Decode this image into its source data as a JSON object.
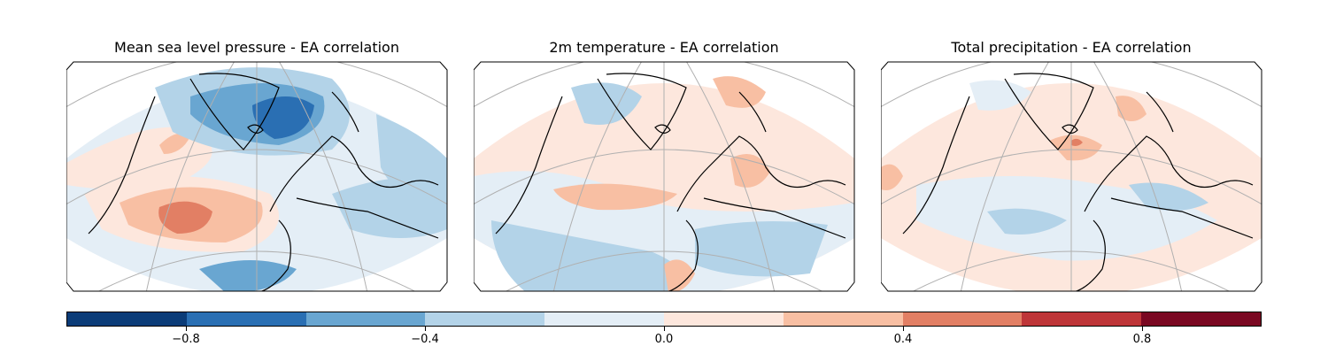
{
  "figure": {
    "panels": [
      {
        "title": "Mean sea level pressure - EA correlation",
        "variable": "msl"
      },
      {
        "title": "2m temperature - EA correlation",
        "variable": "t2m"
      },
      {
        "title": "Total precipitation - EA correlation",
        "variable": "tp"
      }
    ],
    "colorbar": {
      "range": [
        -1.0,
        1.0
      ],
      "levels": [
        -1.0,
        -0.8,
        -0.6,
        -0.4,
        -0.2,
        0.0,
        0.2,
        0.4,
        0.6,
        0.8,
        1.0
      ],
      "colors": [
        "#0b3c78",
        "#2a6fb3",
        "#69a6d1",
        "#b3d3e8",
        "#e4eef6",
        "#fde7dd",
        "#f8bfa3",
        "#e27f64",
        "#be3538",
        "#7a0822"
      ],
      "ticks": [
        -0.8,
        -0.4,
        0.0,
        0.4,
        0.8
      ],
      "tick_labels": [
        "−0.8",
        "−0.4",
        "0.0",
        "0.4",
        "0.8"
      ]
    },
    "map_style": {
      "land_outline_color": "#000000",
      "graticule_color": "#b0b0b0"
    }
  }
}
